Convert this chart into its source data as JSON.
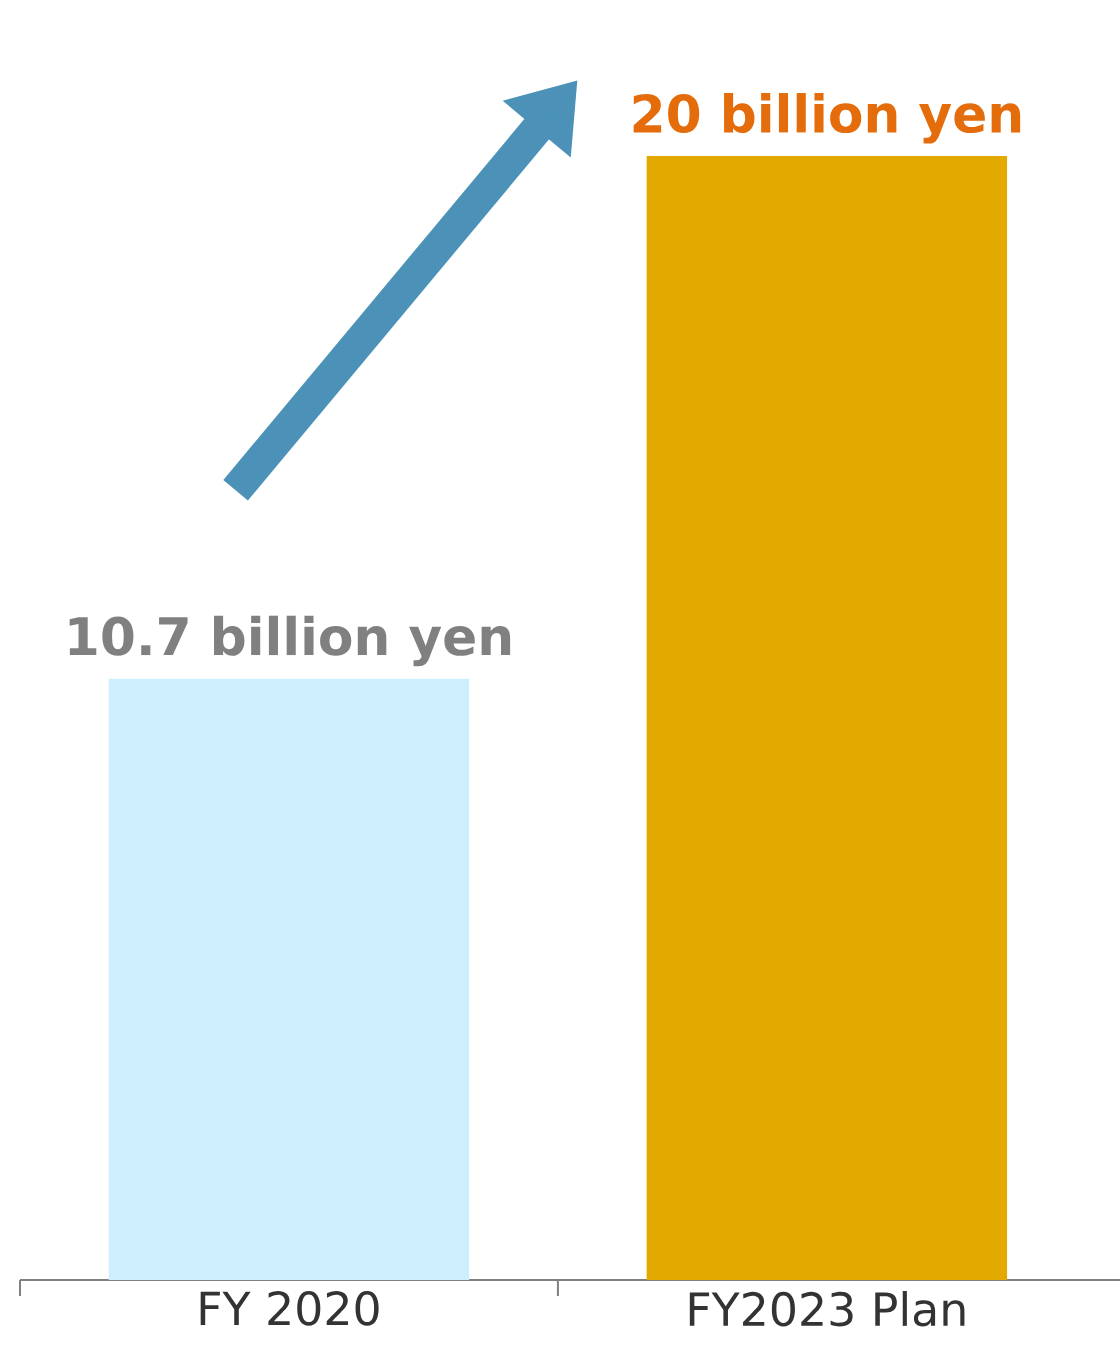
{
  "chart_data": {
    "type": "bar",
    "categories": [
      "FY 2020",
      "FY2023 Plan"
    ],
    "values": [
      10.7,
      20
    ],
    "colors": [
      "#cdeefd",
      "#e2a900"
    ],
    "value_labels": [
      "10.7 billion yen",
      "20 billion yen"
    ]
  }
}
